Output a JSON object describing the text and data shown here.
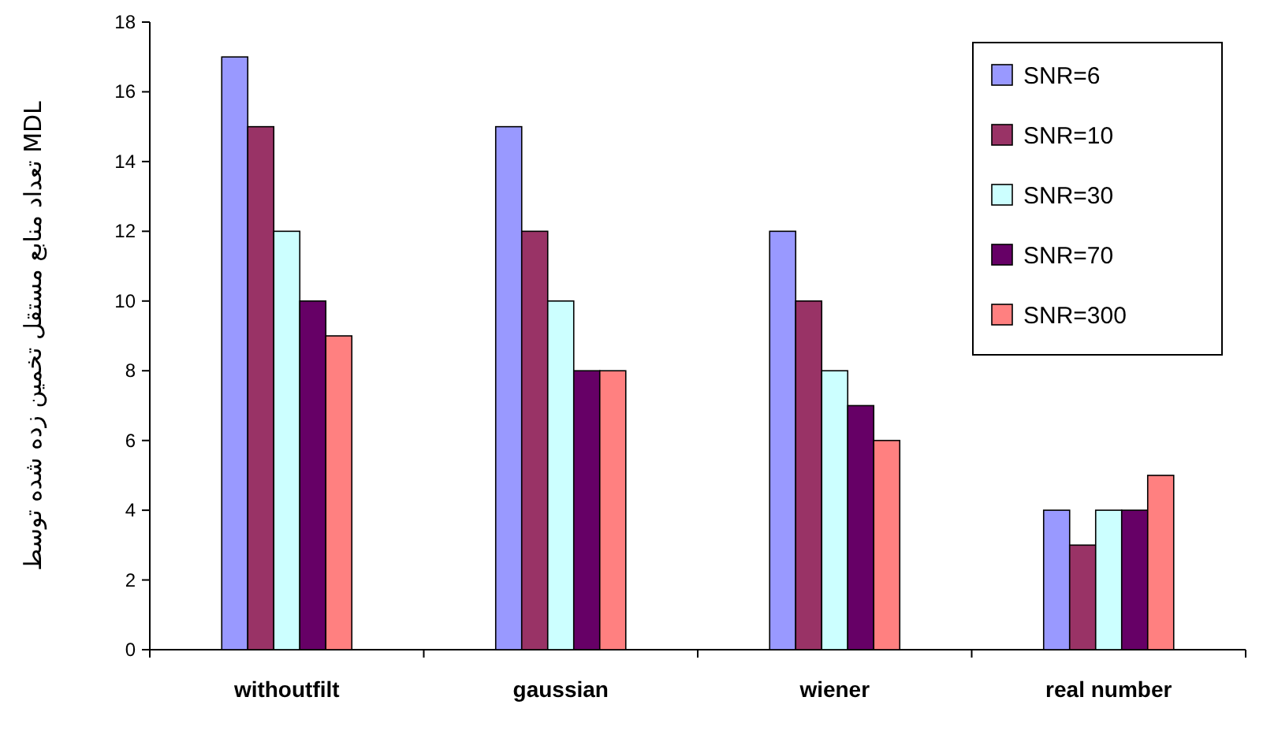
{
  "chart_data": {
    "type": "bar",
    "ylabel": "تعداد منابع مستقل تخمین زده شده توسط MDL",
    "categories": [
      "withoutfilt",
      "gaussian",
      "wiener",
      "real number"
    ],
    "series": [
      {
        "name": "SNR=6",
        "color": "#9999ff",
        "values": [
          17,
          15,
          12,
          4
        ]
      },
      {
        "name": "SNR=10",
        "color": "#993366",
        "values": [
          15,
          12,
          10,
          3
        ]
      },
      {
        "name": "SNR=30",
        "color": "#ccffff",
        "values": [
          12,
          10,
          8,
          4
        ]
      },
      {
        "name": "SNR=70",
        "color": "#660066",
        "values": [
          10,
          8,
          7,
          4
        ]
      },
      {
        "name": "SNR=300",
        "color": "#ff8080",
        "values": [
          9,
          8,
          6,
          5
        ]
      }
    ],
    "ylim": [
      0,
      18
    ],
    "yticks": [
      0,
      2,
      4,
      6,
      8,
      10,
      12,
      14,
      16,
      18
    ],
    "grid": false,
    "legend": "top right"
  }
}
